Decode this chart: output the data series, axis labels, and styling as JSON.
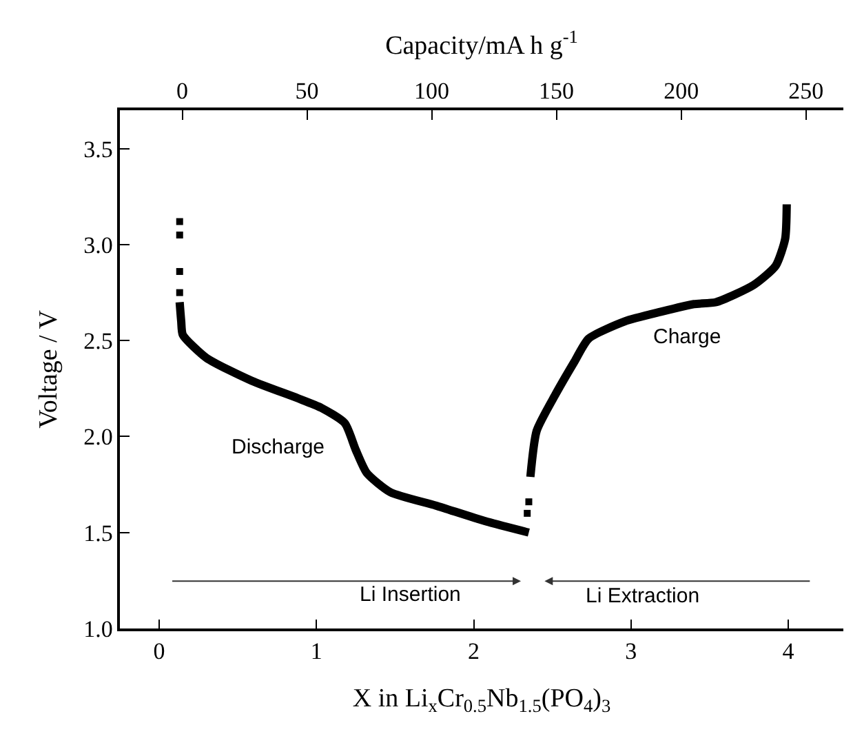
{
  "chart_data": {
    "type": "line",
    "xlabel": "X in Li$_{x}$Cr$_{0.5}$Nb$_{1.5}$(PO$_{4}$)$_{3}$",
    "x2label": "Capacity/mA h g$^{-1}$",
    "ylabel": "Voltage / V",
    "xlim": [
      -0.25,
      4.35
    ],
    "xticks": [
      0,
      1,
      2,
      3,
      4
    ],
    "x2lim": [
      -25,
      265
    ],
    "x2ticks": [
      0,
      50,
      100,
      150,
      200,
      250
    ],
    "ylim": [
      1.0,
      3.7
    ],
    "yticks": [
      {
        "value": 1.0,
        "label": "1.0"
      },
      1.5,
      {
        "value": 2.0,
        "label": "2.0"
      },
      2.5,
      {
        "value": 3.0,
        "label": "3.0"
      },
      3.5
    ],
    "legend": false,
    "line_style": "solid",
    "series": [
      {
        "type": "scatter",
        "marker": "square",
        "color": "#000000",
        "x": [
          0.13,
          0.13,
          0.13,
          0.13
        ],
        "values": [
          3.12,
          3.05,
          2.86,
          2.75
        ]
      },
      {
        "name": "Discharge",
        "marker": "none",
        "color": "#000000",
        "x": [
          0.13,
          0.14,
          0.15,
          0.3,
          0.59,
          0.88,
          1.03,
          1.18,
          1.25,
          1.32,
          1.47,
          1.76,
          2.07,
          2.35
        ],
        "values": [
          2.7,
          2.6,
          2.53,
          2.41,
          2.29,
          2.2,
          2.15,
          2.07,
          1.93,
          1.81,
          1.71,
          1.64,
          1.56,
          1.5
        ]
      },
      {
        "type": "scatter",
        "marker": "square",
        "color": "#000000",
        "x": [
          2.34,
          2.35
        ],
        "values": [
          1.6,
          1.66
        ]
      },
      {
        "name": "Charge",
        "marker": "none",
        "color": "#000000",
        "x": [
          2.36,
          2.4,
          2.52,
          2.64,
          2.73,
          2.96,
          3.19,
          3.4,
          3.54,
          3.78,
          3.92,
          3.98,
          3.99
        ],
        "values": [
          1.79,
          2.03,
          2.22,
          2.39,
          2.51,
          2.6,
          2.65,
          2.69,
          2.7,
          2.79,
          2.89,
          3.03,
          3.21
        ]
      }
    ],
    "annotations": [
      "Li Insertion",
      "Li Extraction"
    ]
  }
}
